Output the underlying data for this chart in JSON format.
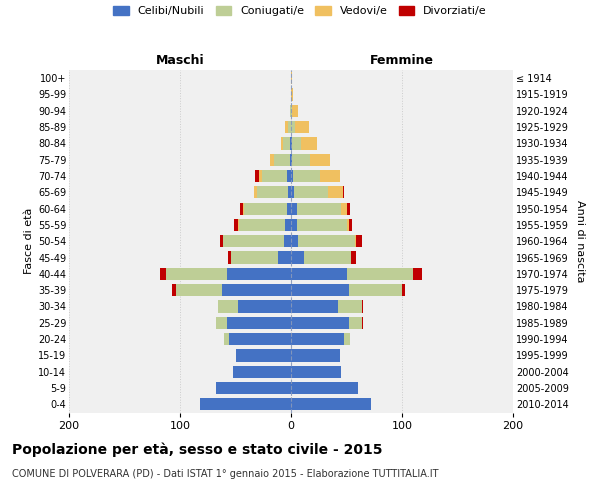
{
  "age_groups": [
    "0-4",
    "5-9",
    "10-14",
    "15-19",
    "20-24",
    "25-29",
    "30-34",
    "35-39",
    "40-44",
    "45-49",
    "50-54",
    "55-59",
    "60-64",
    "65-69",
    "70-74",
    "75-79",
    "80-84",
    "85-89",
    "90-94",
    "95-99",
    "100+"
  ],
  "birth_years": [
    "2010-2014",
    "2005-2009",
    "2000-2004",
    "1995-1999",
    "1990-1994",
    "1985-1989",
    "1980-1984",
    "1975-1979",
    "1970-1974",
    "1965-1969",
    "1960-1964",
    "1955-1959",
    "1950-1954",
    "1945-1949",
    "1940-1944",
    "1935-1939",
    "1930-1934",
    "1925-1929",
    "1920-1924",
    "1915-1919",
    "≤ 1914"
  ],
  "males": {
    "celibi": [
      82,
      68,
      52,
      50,
      56,
      58,
      48,
      62,
      58,
      12,
      6,
      5,
      4,
      3,
      4,
      1,
      1,
      0,
      0,
      0,
      0
    ],
    "coniugati": [
      0,
      0,
      0,
      0,
      4,
      10,
      18,
      42,
      55,
      42,
      55,
      42,
      38,
      28,
      22,
      14,
      6,
      3,
      1,
      0,
      0
    ],
    "vedovi": [
      0,
      0,
      0,
      0,
      0,
      0,
      0,
      0,
      0,
      0,
      0,
      1,
      1,
      2,
      3,
      4,
      2,
      2,
      0,
      0,
      0
    ],
    "divorziati": [
      0,
      0,
      0,
      0,
      0,
      0,
      0,
      3,
      5,
      3,
      3,
      3,
      3,
      0,
      3,
      0,
      0,
      0,
      0,
      0,
      0
    ]
  },
  "females": {
    "nubili": [
      72,
      60,
      45,
      44,
      48,
      52,
      42,
      52,
      50,
      12,
      6,
      5,
      5,
      3,
      2,
      1,
      1,
      0,
      0,
      0,
      0
    ],
    "coniugate": [
      0,
      0,
      0,
      0,
      5,
      12,
      22,
      48,
      60,
      42,
      52,
      45,
      40,
      30,
      24,
      16,
      8,
      4,
      1,
      0,
      0
    ],
    "vedove": [
      0,
      0,
      0,
      0,
      0,
      0,
      0,
      0,
      0,
      0,
      1,
      2,
      5,
      14,
      18,
      18,
      14,
      12,
      5,
      2,
      1
    ],
    "divorziate": [
      0,
      0,
      0,
      0,
      0,
      1,
      1,
      3,
      8,
      5,
      5,
      3,
      3,
      1,
      0,
      0,
      0,
      0,
      0,
      0,
      0
    ]
  },
  "colors": {
    "celibi_nubili": "#4472C4",
    "coniugati_e": "#BECE96",
    "vedovi_e": "#F0C060",
    "divorziati_e": "#C00000"
  },
  "title": "Popolazione per età, sesso e stato civile - 2015",
  "subtitle": "COMUNE DI POLVERARA (PD) - Dati ISTAT 1° gennaio 2015 - Elaborazione TUTTITALIA.IT",
  "label_maschi": "Maschi",
  "label_femmine": "Femmine",
  "ylabel_left": "Fasce di età",
  "ylabel_right": "Anni di nascita",
  "xlim": 200,
  "bg_color": "#ffffff",
  "plot_bg": "#f0f0f0",
  "grid_color": "#cccccc",
  "legend_labels": [
    "Celibi/Nubili",
    "Coniugati/e",
    "Vedovi/e",
    "Divorziati/e"
  ]
}
